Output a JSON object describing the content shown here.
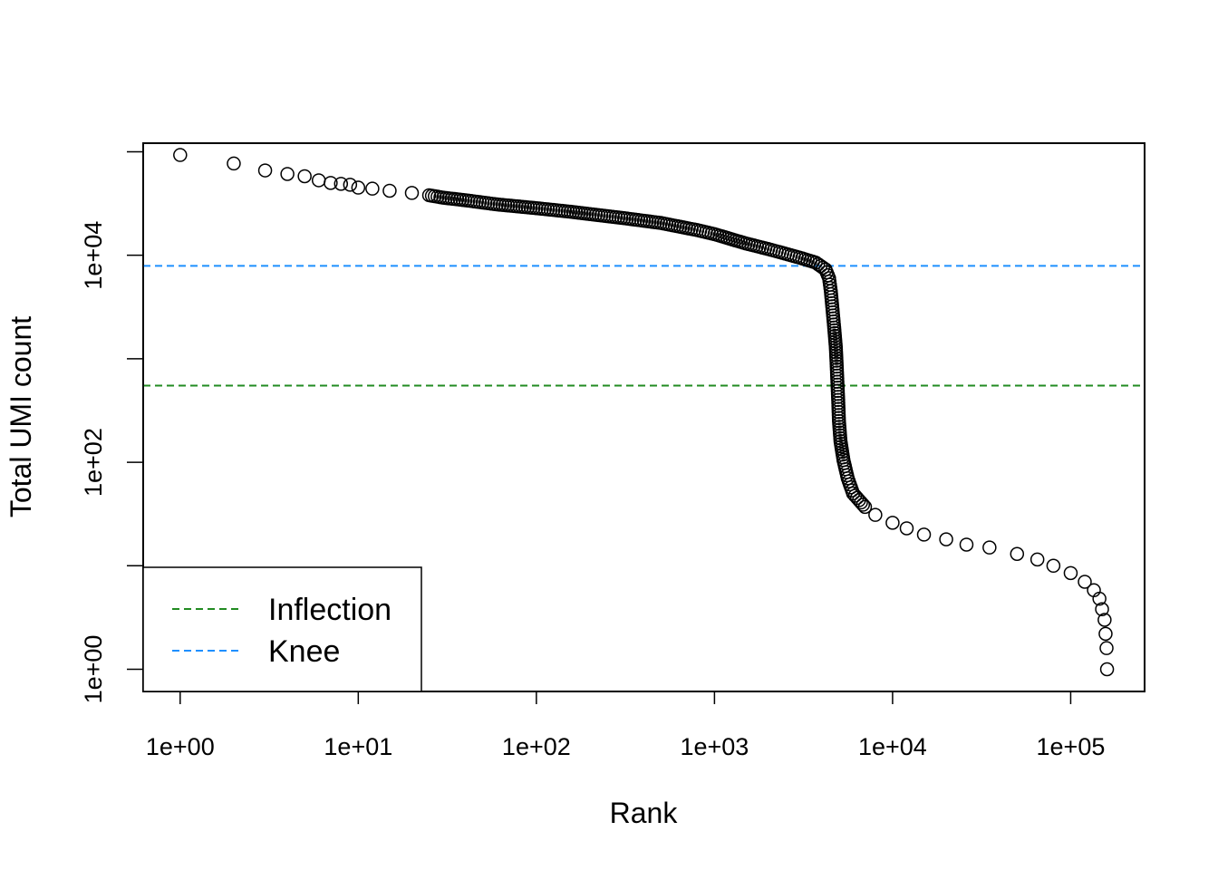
{
  "chart_data": {
    "type": "scatter",
    "xlabel": "Rank",
    "ylabel": "Total UMI count",
    "log_x": true,
    "log_y": true,
    "xlim": [
      0.62,
      260000
    ],
    "ylim": [
      0.61,
      121000
    ],
    "x_ticks": [
      {
        "value": 1,
        "label": "1e+00"
      },
      {
        "value": 10,
        "label": "1e+01"
      },
      {
        "value": 100,
        "label": "1e+02"
      },
      {
        "value": 1000,
        "label": "1e+03"
      },
      {
        "value": 10000,
        "label": "1e+04"
      },
      {
        "value": 100000,
        "label": "1e+05"
      }
    ],
    "y_ticks": [
      {
        "value": 1,
        "label": "1e+00"
      },
      {
        "value": 10,
        "label": ""
      },
      {
        "value": 100,
        "label": "1e+02"
      },
      {
        "value": 1000,
        "label": ""
      },
      {
        "value": 10000,
        "label": "1e+04"
      },
      {
        "value": 100000,
        "label": ""
      }
    ],
    "hlines": [
      {
        "name": "Inflection",
        "value": 550,
        "color": "#228B22",
        "dash": "dashed"
      },
      {
        "name": "Knee",
        "value": 7900,
        "color": "#1E90FF",
        "dash": "dashed"
      }
    ],
    "legend": {
      "position": "bottom-left",
      "entries": [
        {
          "label": "Inflection",
          "color": "#228B22"
        },
        {
          "label": "Knee",
          "color": "#1E90FF"
        }
      ]
    },
    "grid": false,
    "marker": "open-circle",
    "points": [
      [
        1,
        93000
      ],
      [
        2,
        77000
      ],
      [
        3,
        66000
      ],
      [
        4,
        61000
      ],
      [
        5,
        58000
      ],
      [
        6,
        53000
      ],
      [
        7,
        50000
      ],
      [
        8,
        49000
      ],
      [
        9,
        48000
      ],
      [
        10,
        45000
      ],
      [
        12,
        44000
      ],
      [
        15,
        42000
      ],
      [
        20,
        40000
      ],
      [
        25,
        38000
      ],
      [
        30,
        36000
      ],
      [
        40,
        34000
      ],
      [
        60,
        31000
      ],
      [
        100,
        28500
      ],
      [
        150,
        26500
      ],
      [
        200,
        25000
      ],
      [
        300,
        23000
      ],
      [
        500,
        20500
      ],
      [
        800,
        17500
      ],
      [
        1000,
        16000
      ],
      [
        1500,
        13000
      ],
      [
        2000,
        11500
      ],
      [
        3000,
        9500
      ],
      [
        3700,
        8500
      ],
      [
        4200,
        7300
      ],
      [
        4400,
        6000
      ],
      [
        4500,
        4500
      ],
      [
        4600,
        3000
      ],
      [
        4700,
        2000
      ],
      [
        4800,
        1300
      ],
      [
        4850,
        900
      ],
      [
        4900,
        600
      ],
      [
        4950,
        400
      ],
      [
        5000,
        250
      ],
      [
        5100,
        160
      ],
      [
        5300,
        105
      ],
      [
        5600,
        70
      ],
      [
        6000,
        50
      ],
      [
        7000,
        37
      ],
      [
        8000,
        31
      ],
      [
        10000,
        26
      ],
      [
        12000,
        23
      ],
      [
        15000,
        20
      ],
      [
        20000,
        18
      ],
      [
        26000,
        16
      ],
      [
        35000,
        15
      ],
      [
        50000,
        13
      ],
      [
        65000,
        11.5
      ],
      [
        80000,
        10
      ],
      [
        100000,
        8.5
      ],
      [
        120000,
        7
      ],
      [
        135000,
        5.8
      ],
      [
        145000,
        4.8
      ],
      [
        150000,
        3.8
      ],
      [
        155000,
        3
      ],
      [
        157000,
        2.2
      ],
      [
        159000,
        1.6
      ],
      [
        160000,
        1
      ]
    ]
  }
}
